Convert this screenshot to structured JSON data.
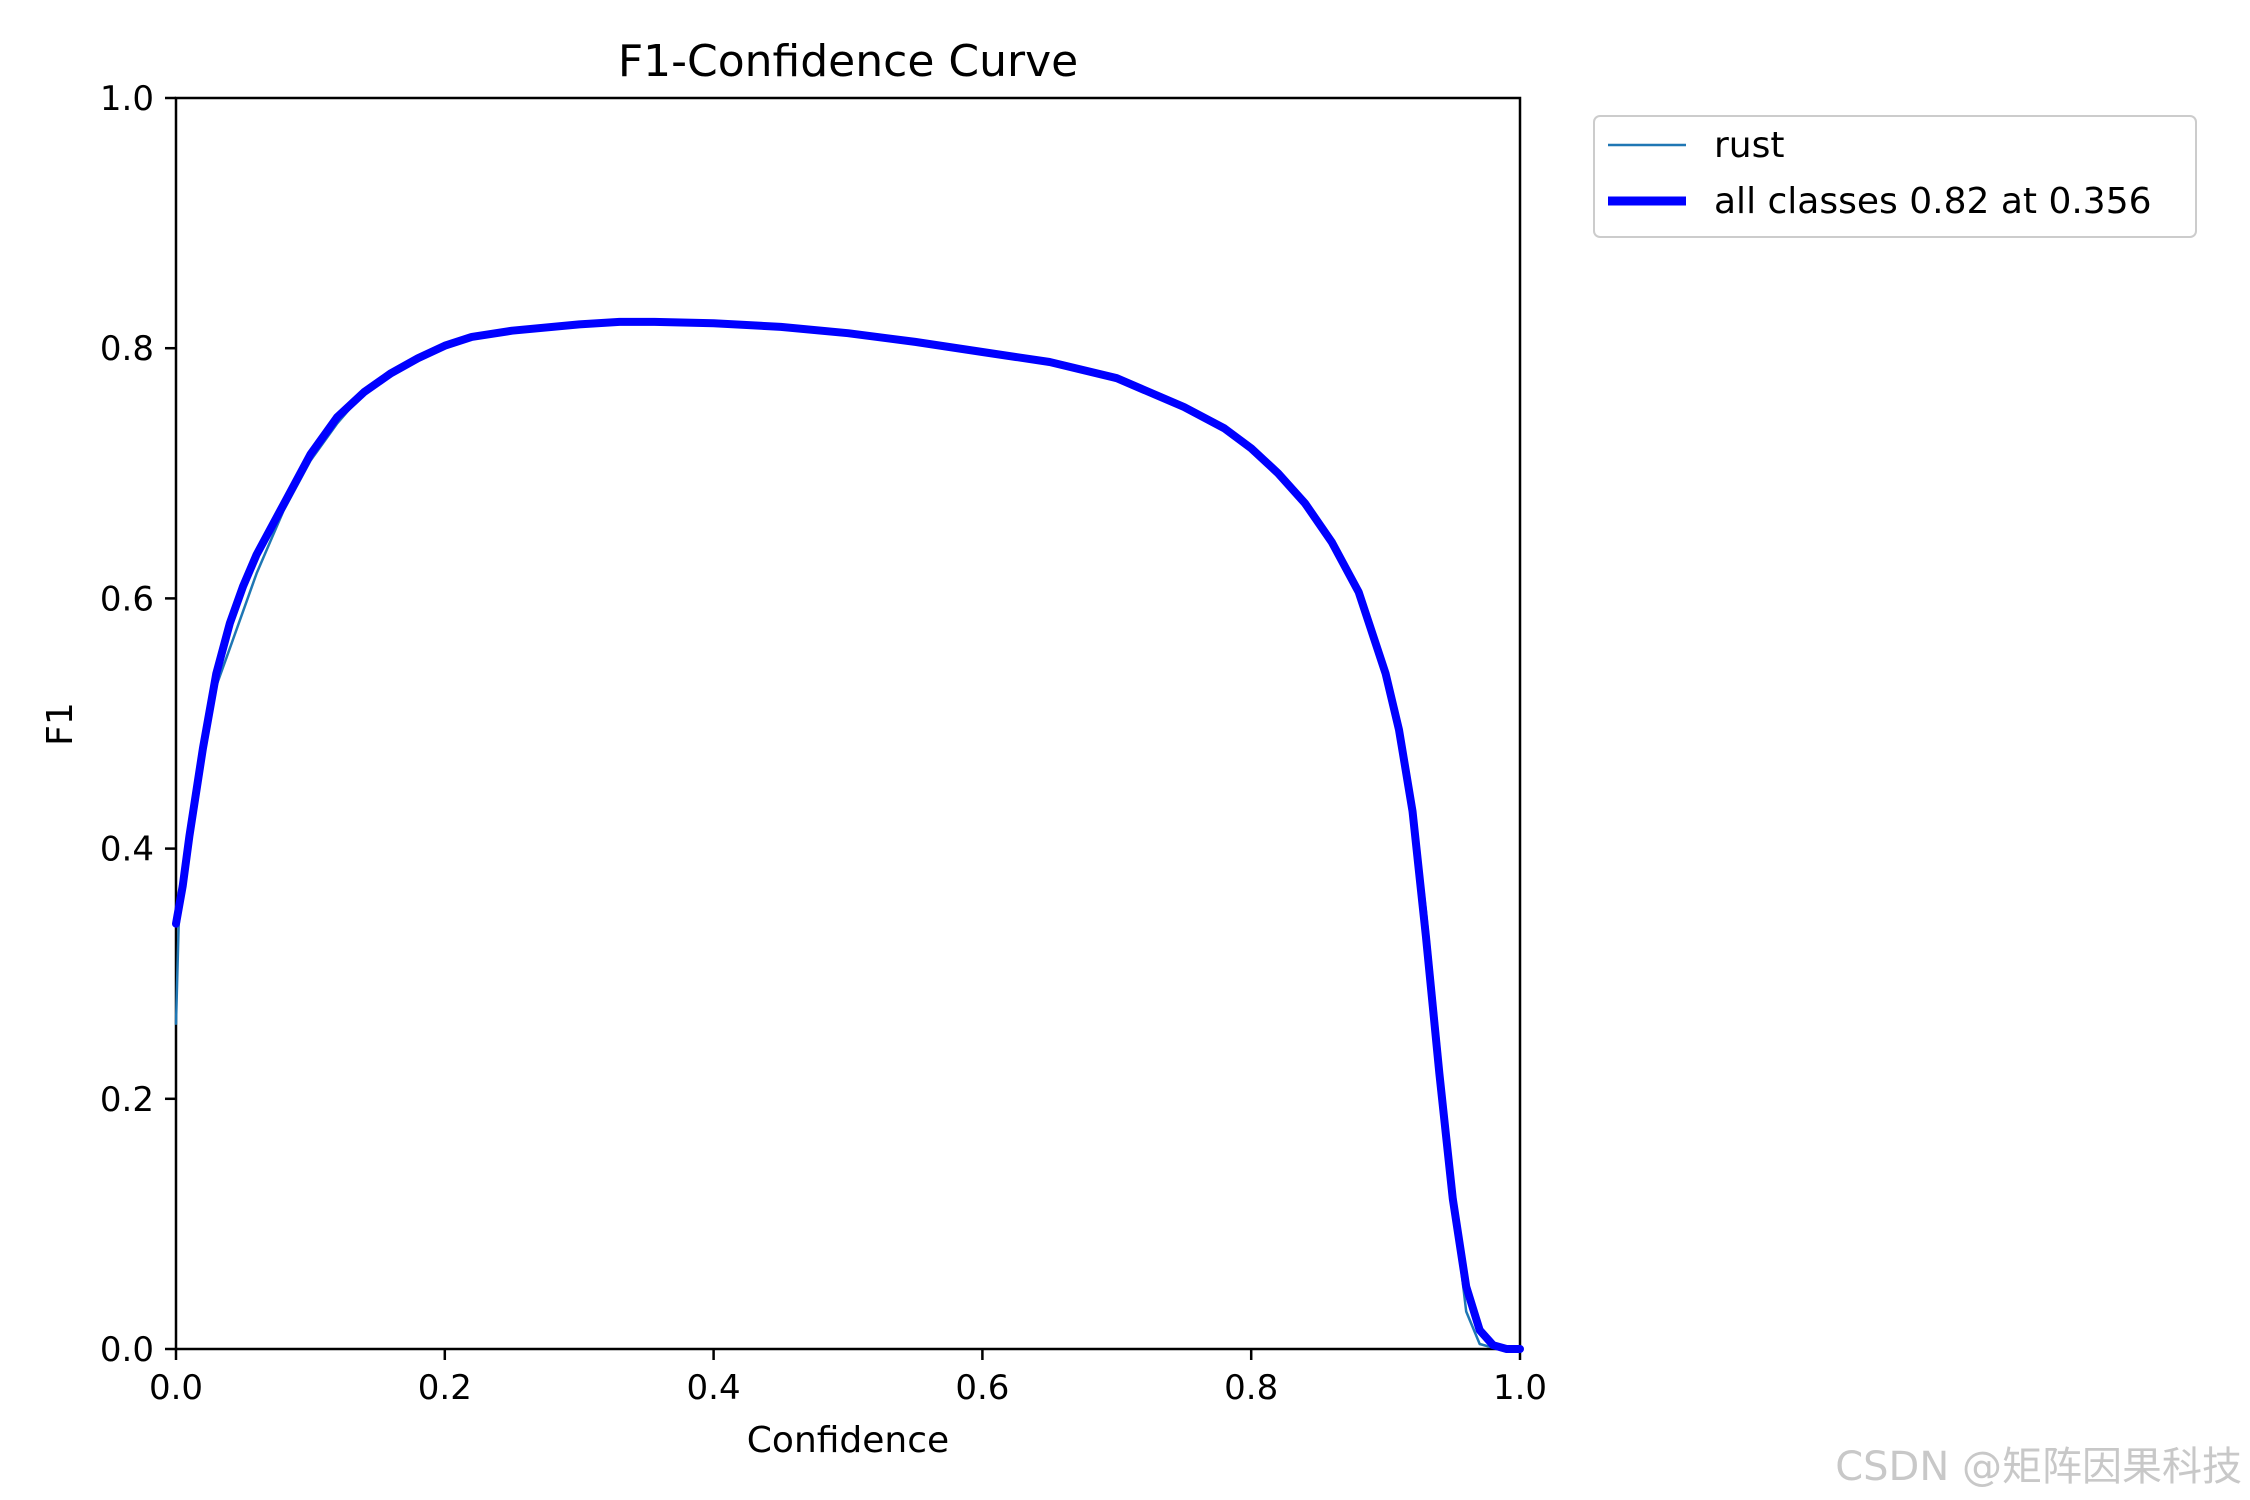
{
  "chart_data": {
    "type": "line",
    "title": "F1-Confidence Curve",
    "xlabel": "Confidence",
    "ylabel": "F1",
    "xlim": [
      0,
      1
    ],
    "ylim": [
      0,
      1
    ],
    "xticks": [
      "0.0",
      "0.2",
      "0.4",
      "0.6",
      "0.8",
      "1.0"
    ],
    "yticks": [
      "0.0",
      "0.2",
      "0.4",
      "0.6",
      "0.8",
      "1.0"
    ],
    "grid": false,
    "legend_position": "outside-top-right",
    "series": [
      {
        "name": "rust",
        "color": "#1f77b4",
        "x": [
          0.0,
          0.002,
          0.005,
          0.01,
          0.02,
          0.03,
          0.04,
          0.05,
          0.06,
          0.08,
          0.1,
          0.12,
          0.14,
          0.16,
          0.18,
          0.2,
          0.22,
          0.25,
          0.3,
          0.33,
          0.356,
          0.4,
          0.45,
          0.5,
          0.55,
          0.6,
          0.65,
          0.7,
          0.75,
          0.78,
          0.8,
          0.82,
          0.84,
          0.86,
          0.88,
          0.9,
          0.91,
          0.92,
          0.93,
          0.94,
          0.95,
          0.96,
          0.97,
          0.98,
          0.99,
          1.0
        ],
        "y": [
          0.26,
          0.34,
          0.37,
          0.42,
          0.49,
          0.53,
          0.56,
          0.59,
          0.62,
          0.67,
          0.71,
          0.74,
          0.765,
          0.78,
          0.792,
          0.802,
          0.809,
          0.814,
          0.819,
          0.821,
          0.821,
          0.82,
          0.817,
          0.812,
          0.805,
          0.797,
          0.789,
          0.776,
          0.753,
          0.736,
          0.72,
          0.7,
          0.676,
          0.645,
          0.605,
          0.54,
          0.495,
          0.44,
          0.35,
          0.24,
          0.12,
          0.03,
          0.004,
          0.001,
          0.0,
          0.0
        ]
      },
      {
        "name": "all classes 0.82 at 0.356",
        "color": "#0000ff",
        "x": [
          0.0,
          0.005,
          0.01,
          0.02,
          0.03,
          0.04,
          0.05,
          0.06,
          0.08,
          0.1,
          0.12,
          0.14,
          0.16,
          0.18,
          0.2,
          0.22,
          0.25,
          0.3,
          0.33,
          0.356,
          0.4,
          0.45,
          0.5,
          0.55,
          0.6,
          0.65,
          0.7,
          0.75,
          0.78,
          0.8,
          0.82,
          0.84,
          0.86,
          0.88,
          0.9,
          0.91,
          0.92,
          0.93,
          0.94,
          0.95,
          0.96,
          0.97,
          0.98,
          0.99,
          1.0
        ],
        "y": [
          0.34,
          0.37,
          0.41,
          0.48,
          0.54,
          0.58,
          0.61,
          0.635,
          0.675,
          0.715,
          0.745,
          0.765,
          0.78,
          0.792,
          0.802,
          0.809,
          0.814,
          0.819,
          0.821,
          0.821,
          0.82,
          0.817,
          0.812,
          0.805,
          0.797,
          0.789,
          0.776,
          0.753,
          0.736,
          0.72,
          0.7,
          0.676,
          0.645,
          0.605,
          0.54,
          0.495,
          0.43,
          0.33,
          0.22,
          0.12,
          0.05,
          0.015,
          0.003,
          0.0,
          0.0
        ]
      }
    ]
  },
  "watermark": "CSDN @矩阵因果科技"
}
